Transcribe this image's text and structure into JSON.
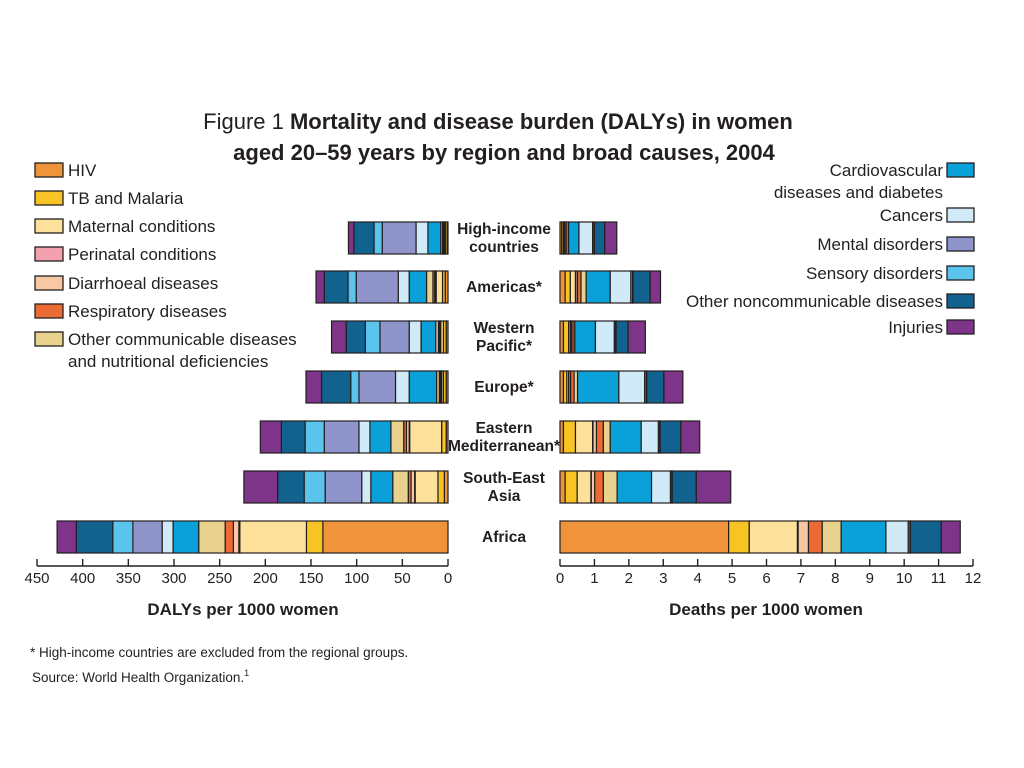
{
  "chart_data": {
    "type": "bar",
    "orientation": "horizontal",
    "stacked": true,
    "title_prefix": "Figure 1",
    "title_line1": "Mortality and disease burden (DALYs) in women",
    "title_line2": "aged 20–59 years by region and broad causes, 2004",
    "footnote": "* High-income countries are excluded from the regional groups.",
    "source": "Source: World Health Organization.",
    "source_sup": "1",
    "categories": [
      [
        "High-income",
        "countries"
      ],
      [
        "Americas*"
      ],
      [
        "Western",
        "Pacific*"
      ],
      [
        "Europe*"
      ],
      [
        "Eastern",
        "Mediterranean*"
      ],
      [
        "South-East",
        "Asia"
      ],
      [
        "Africa"
      ]
    ],
    "left_panel": {
      "xlabel": "DALYs per 1000 women",
      "xlim": [
        0,
        450
      ],
      "ticks": [
        450,
        400,
        350,
        300,
        250,
        200,
        150,
        100,
        50,
        0
      ],
      "reversed": true
    },
    "right_panel": {
      "xlabel": "Deaths per 1000 women",
      "xlim": [
        0,
        12
      ],
      "ticks": [
        0,
        1,
        2,
        3,
        4,
        5,
        6,
        7,
        8,
        9,
        10,
        11,
        12
      ],
      "reversed": false
    },
    "series": [
      {
        "name": "HIV",
        "color": "#f0943c",
        "dalys": [
          1,
          3,
          2,
          2,
          2,
          4,
          137
        ],
        "deaths": [
          0.05,
          0.15,
          0.1,
          0.1,
          0.1,
          0.15,
          4.9
        ]
      },
      {
        "name": "TB and Malaria",
        "color": "#f7c325",
        "dalys": [
          2,
          3,
          3,
          3,
          5,
          7,
          18
        ],
        "deaths": [
          0.05,
          0.15,
          0.15,
          0.1,
          0.35,
          0.35,
          0.6
        ]
      },
      {
        "name": "Maternal conditions",
        "color": "#fde09a",
        "dalys": [
          1,
          7,
          3,
          2,
          35,
          25,
          73
        ],
        "deaths": [
          0.03,
          0.15,
          0.05,
          0.05,
          0.5,
          0.4,
          1.4
        ]
      },
      {
        "name": "Perinatal conditions",
        "color": "#f3a1ae",
        "dalys": [
          0.5,
          0.5,
          0.5,
          0.5,
          0.5,
          0.5,
          1
        ],
        "deaths": [
          0.01,
          0.01,
          0.01,
          0.01,
          0.01,
          0.01,
          0.02
        ]
      },
      {
        "name": "Diarrhoeal diseases",
        "color": "#f8c7a4",
        "dalys": [
          0.5,
          1,
          1,
          1,
          3,
          4,
          6
        ],
        "deaths": [
          0.01,
          0.05,
          0.02,
          0.05,
          0.1,
          0.1,
          0.3
        ]
      },
      {
        "name": "Respiratory diseases",
        "color": "#ec6b35",
        "dalys": [
          1,
          2,
          1,
          1,
          3,
          3,
          9
        ],
        "deaths": [
          0.05,
          0.1,
          0.05,
          0.1,
          0.2,
          0.25,
          0.4
        ]
      },
      {
        "name": "Other communicable diseases and nutritional deficiencies",
        "color": "#e8d28d",
        "dalys": [
          2,
          7,
          3,
          3,
          14,
          17,
          29
        ],
        "deaths": [
          0.05,
          0.15,
          0.05,
          0.1,
          0.2,
          0.4,
          0.55
        ]
      },
      {
        "name": "Cardiovascular diseases and diabetes",
        "color": "#0aa0d8",
        "dalys": [
          14,
          19,
          16,
          30,
          23,
          24,
          28
        ],
        "deaths": [
          0.3,
          0.7,
          0.6,
          1.2,
          0.9,
          1.0,
          1.3
        ]
      },
      {
        "name": "Cancers",
        "color": "#d0eaf7",
        "dalys": [
          13,
          12,
          13,
          15,
          12,
          10,
          12
        ],
        "deaths": [
          0.4,
          0.6,
          0.55,
          0.75,
          0.5,
          0.55,
          0.65
        ]
      },
      {
        "name": "Mental disorders",
        "color": "#8f95cb",
        "dalys": [
          37,
          46,
          32,
          40,
          38,
          40,
          32
        ],
        "deaths": [
          0.04,
          0.05,
          0.04,
          0.05,
          0.04,
          0.04,
          0.05
        ]
      },
      {
        "name": "Sensory disorders",
        "color": "#5bc4ec",
        "dalys": [
          9,
          9,
          16,
          9,
          21,
          23,
          22
        ],
        "deaths": [
          0.01,
          0.01,
          0.01,
          0.01,
          0.01,
          0.01,
          0.01
        ]
      },
      {
        "name": "Other noncommunicable diseases",
        "color": "#11628f",
        "dalys": [
          22,
          26,
          21,
          32,
          26,
          29,
          40
        ],
        "deaths": [
          0.3,
          0.5,
          0.35,
          0.5,
          0.6,
          0.7,
          0.9
        ]
      },
      {
        "name": "Injuries",
        "color": "#7e3488",
        "dalys": [
          6,
          9,
          16,
          17,
          23,
          37,
          21
        ],
        "deaths": [
          0.35,
          0.3,
          0.5,
          0.55,
          0.55,
          1.0,
          0.55
        ]
      }
    ],
    "legend_left": [
      {
        "series": 0,
        "lines": [
          "HIV"
        ]
      },
      {
        "series": 1,
        "lines": [
          "TB and Malaria"
        ]
      },
      {
        "series": 2,
        "lines": [
          "Maternal conditions"
        ]
      },
      {
        "series": 3,
        "lines": [
          "Perinatal conditions"
        ]
      },
      {
        "series": 4,
        "lines": [
          "Diarrhoeal diseases"
        ]
      },
      {
        "series": 5,
        "lines": [
          "Respiratory diseases"
        ]
      },
      {
        "series": 6,
        "lines": [
          "Other communicable diseases",
          "and nutritional deficiencies"
        ]
      }
    ],
    "legend_right": [
      {
        "series": 7,
        "lines": [
          "Cardiovascular",
          "diseases and diabetes"
        ]
      },
      {
        "series": 8,
        "lines": [
          "Cancers"
        ]
      },
      {
        "series": 9,
        "lines": [
          "Mental disorders"
        ]
      },
      {
        "series": 10,
        "lines": [
          "Sensory disorders"
        ]
      },
      {
        "series": 11,
        "lines": [
          "Other noncommunicable diseases"
        ]
      },
      {
        "series": 12,
        "lines": [
          "Injuries"
        ]
      }
    ]
  }
}
